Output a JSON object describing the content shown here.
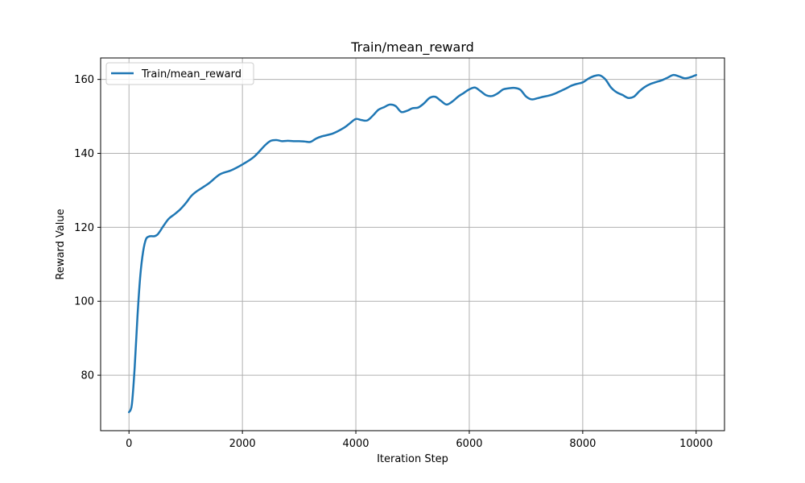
{
  "chart_data": {
    "type": "line",
    "title": "Train/mean_reward",
    "xlabel": "Iteration Step",
    "ylabel": "Reward Value",
    "xlim": [
      -500,
      10500
    ],
    "ylim": [
      65,
      165.8
    ],
    "xticks": [
      0,
      2000,
      4000,
      6000,
      8000,
      10000
    ],
    "xtick_labels": [
      "0",
      "2000",
      "4000",
      "6000",
      "8000",
      "10000"
    ],
    "yticks": [
      80,
      100,
      120,
      140,
      160
    ],
    "ytick_labels": [
      "80",
      "100",
      "120",
      "140",
      "160"
    ],
    "grid": true,
    "legend": {
      "position": "top-left",
      "entries": [
        "Train/mean_reward"
      ]
    },
    "series": [
      {
        "name": "Train/mean_reward",
        "color": "#1f77b4",
        "x": [
          0,
          50,
          100,
          150,
          200,
          250,
          300,
          350,
          400,
          450,
          500,
          550,
          600,
          700,
          800,
          900,
          1000,
          1100,
          1200,
          1400,
          1600,
          1800,
          2000,
          2200,
          2400,
          2500,
          2600,
          2700,
          2800,
          2900,
          3000,
          3100,
          3200,
          3300,
          3400,
          3600,
          3800,
          3900,
          4000,
          4100,
          4200,
          4300,
          4400,
          4500,
          4600,
          4700,
          4800,
          4900,
          5000,
          5100,
          5200,
          5300,
          5400,
          5500,
          5600,
          5700,
          5800,
          5900,
          6000,
          6100,
          6200,
          6300,
          6400,
          6500,
          6600,
          6700,
          6800,
          6900,
          7000,
          7100,
          7200,
          7300,
          7400,
          7500,
          7600,
          7700,
          7800,
          7900,
          8000,
          8100,
          8200,
          8300,
          8400,
          8500,
          8600,
          8700,
          8800,
          8900,
          9000,
          9100,
          9200,
          9300,
          9400,
          9500,
          9600,
          9700,
          9800,
          9900,
          10000
        ],
        "y": [
          70,
          72,
          82,
          96,
          107,
          113.5,
          116.8,
          117.5,
          117.6,
          117.6,
          118,
          119,
          120.2,
          122.3,
          123.5,
          124.8,
          126.5,
          128.5,
          129.8,
          131.8,
          134.3,
          135.4,
          137,
          139,
          142.2,
          143.4,
          143.6,
          143.3,
          143.4,
          143.3,
          143.3,
          143.2,
          143.1,
          144,
          144.6,
          145.4,
          147,
          148.2,
          149.3,
          149,
          148.9,
          150.2,
          151.8,
          152.5,
          153.2,
          152.8,
          151.2,
          151.5,
          152.2,
          152.4,
          153.5,
          155,
          155.3,
          154.2,
          153.2,
          154,
          155.3,
          156.3,
          157.3,
          157.8,
          156.8,
          155.7,
          155.5,
          156.2,
          157.3,
          157.6,
          157.7,
          157.2,
          155.4,
          154.6,
          154.9,
          155.3,
          155.6,
          156.1,
          156.8,
          157.5,
          158.3,
          158.8,
          159.2,
          160.2,
          160.9,
          161.1,
          160,
          157.8,
          156.5,
          155.8,
          155,
          155.3,
          156.8,
          158,
          158.8,
          159.3,
          159.8,
          160.5,
          161.2,
          160.8,
          160.3,
          160.6,
          161.2
        ]
      }
    ]
  }
}
